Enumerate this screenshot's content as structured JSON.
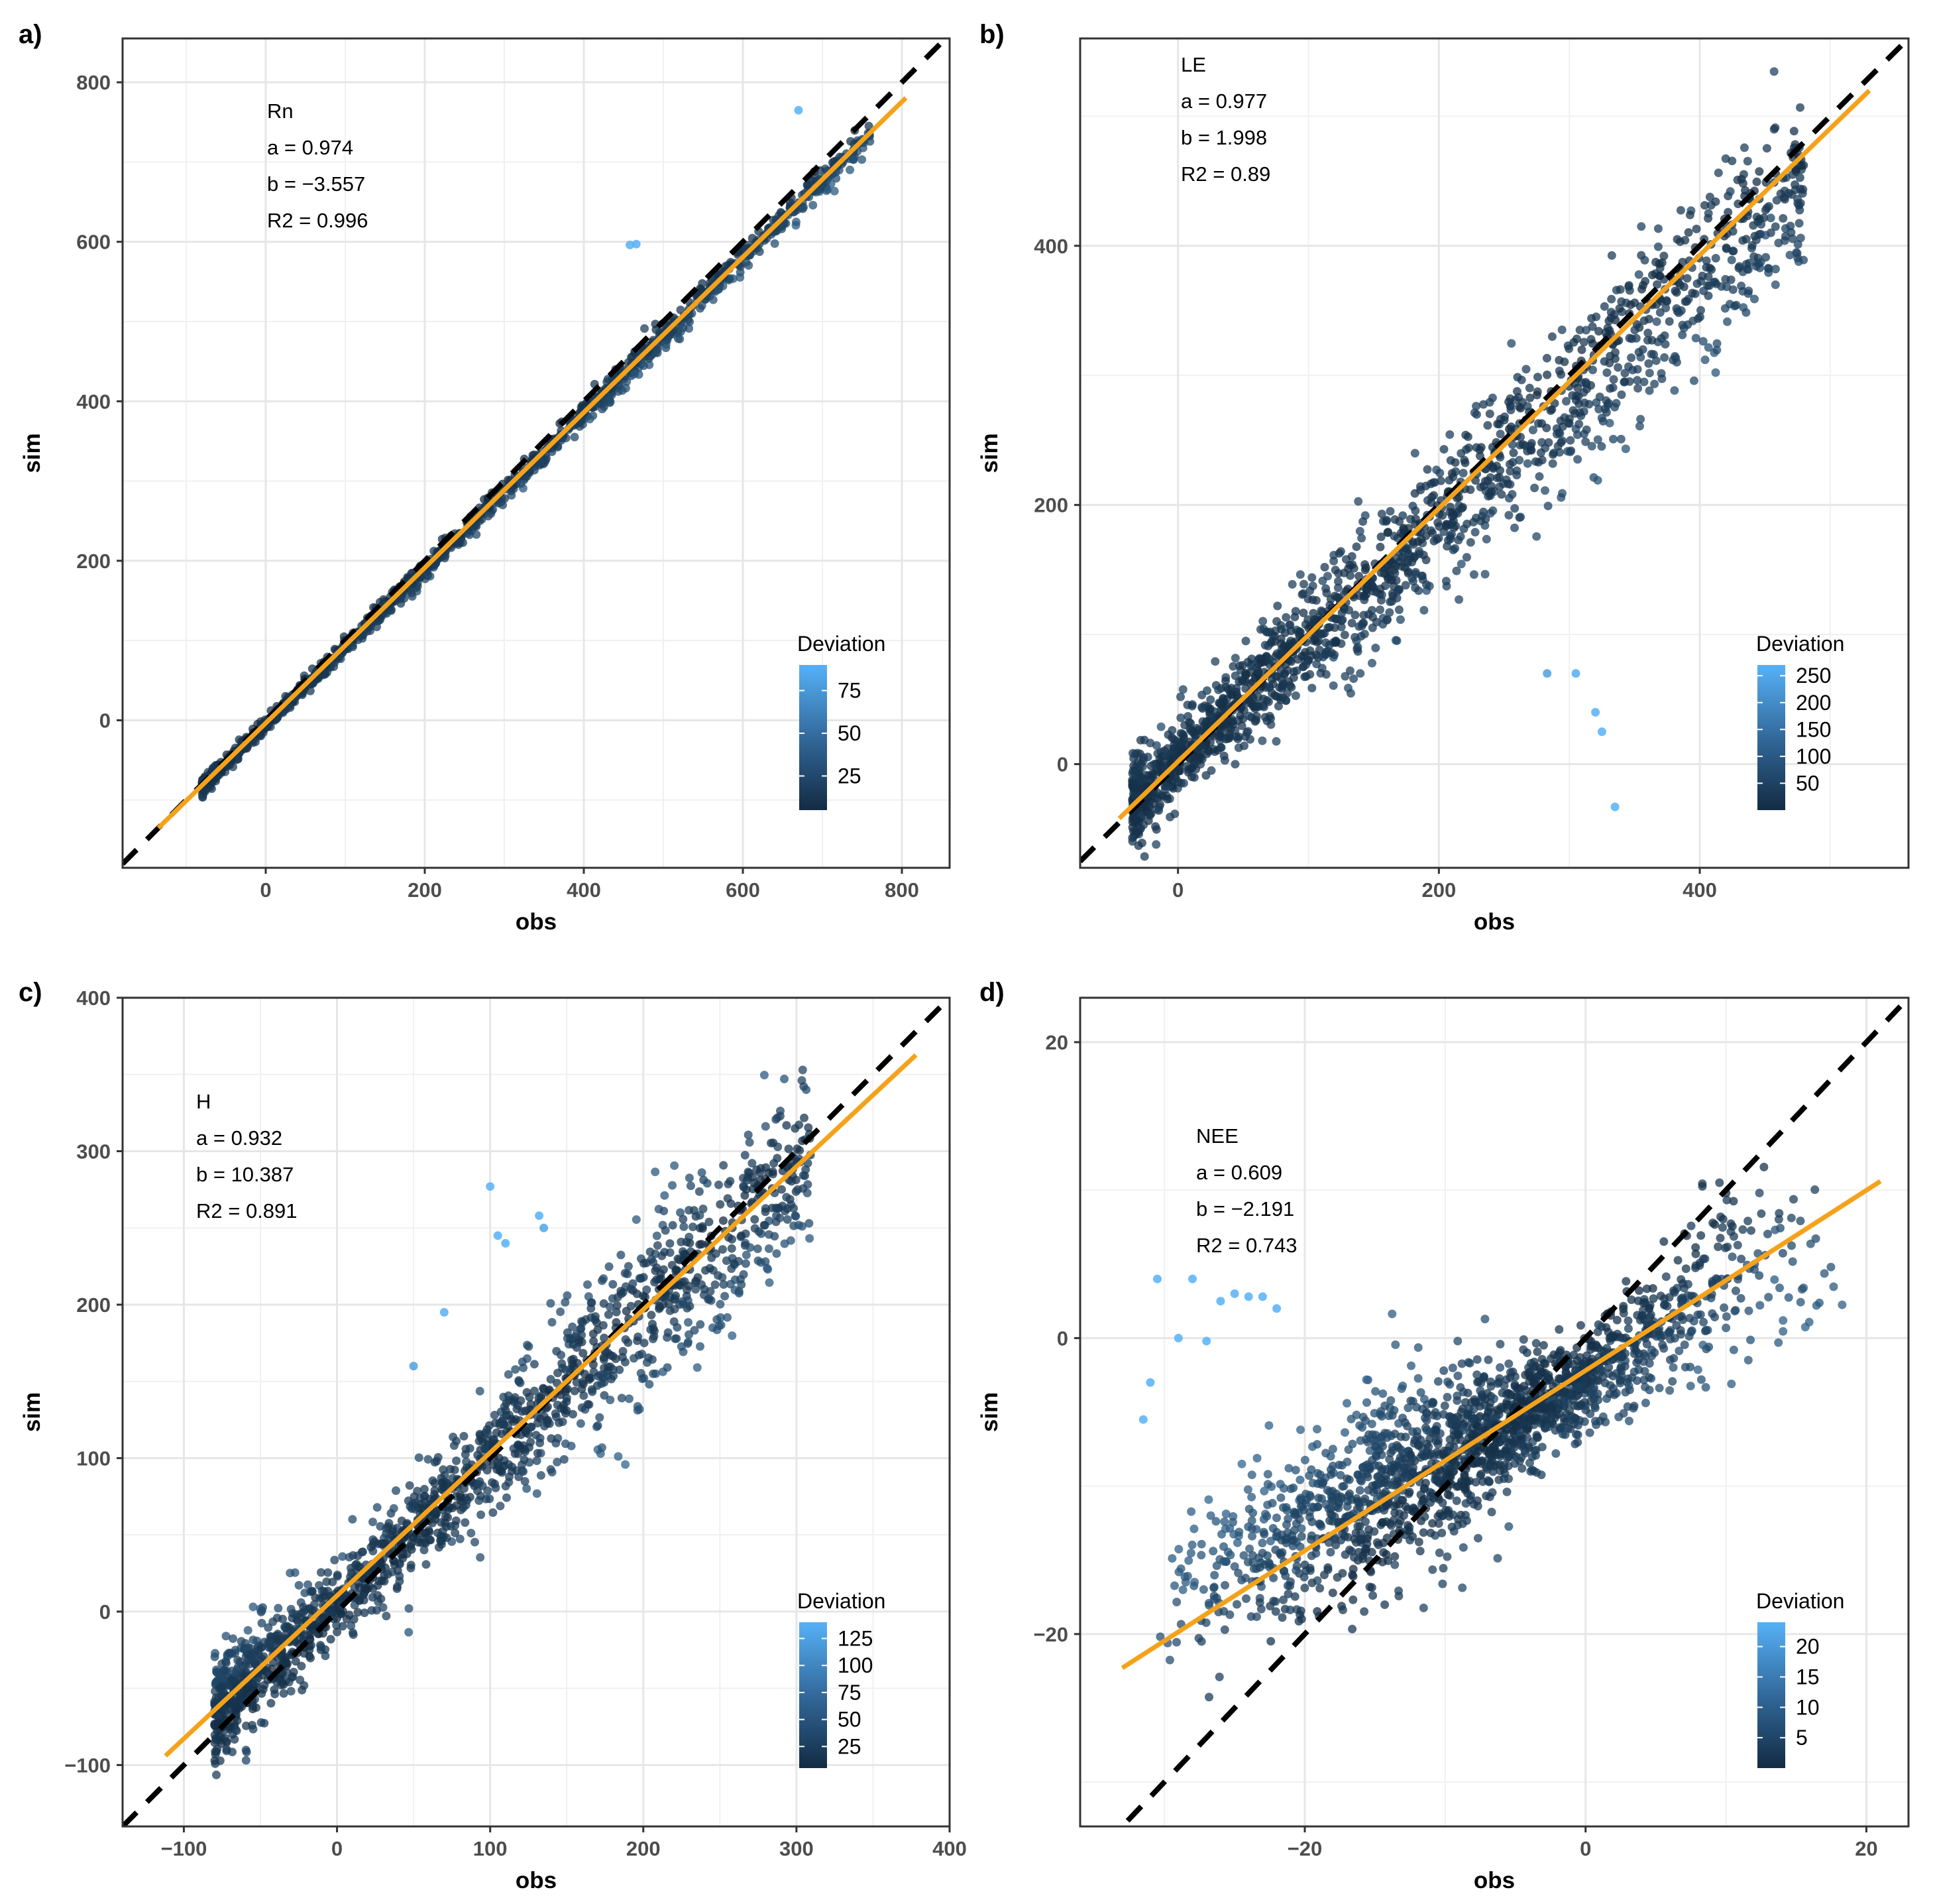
{
  "chart_data": [
    {
      "type": "scatter",
      "tag": "a)",
      "xlabel": "obs",
      "ylabel": "sim",
      "xlim": [
        -180,
        860
      ],
      "ylim": [
        -185,
        855
      ],
      "xticks": [
        0,
        200,
        400,
        600,
        800
      ],
      "yticks": [
        0,
        200,
        400,
        600,
        800
      ],
      "stats": [
        "Rn",
        "a = 0.974",
        "b = −3.557",
        "R2 = 0.996"
      ],
      "fit": {
        "slope": 0.974,
        "intercept": -3.557,
        "x_range": [
          -135,
          805
        ]
      },
      "identity_line": true,
      "legend": {
        "title": "Deviation",
        "position": "bottom-right",
        "min": 5,
        "max": 90,
        "ticks": [
          25,
          50,
          75
        ]
      },
      "points": {
        "x_range": [
          -80,
          760
        ],
        "slope": 0.974,
        "intercept": -5,
        "spread": 9,
        "count": 1400
      },
      "outliers": [
        [
          670,
          765
        ],
        [
          458,
          596
        ],
        [
          466,
          597
        ]
      ]
    },
    {
      "type": "scatter",
      "tag": "b)",
      "xlabel": "obs",
      "ylabel": "sim",
      "xlim": [
        -75,
        560
      ],
      "ylim": [
        -80,
        560
      ],
      "xticks": [
        0,
        200,
        400
      ],
      "yticks": [
        0,
        200,
        400
      ],
      "stats": [
        "LE",
        "a = 0.977",
        "b = 1.998",
        "R2 = 0.89"
      ],
      "fit": {
        "slope": 0.977,
        "intercept": 1.998,
        "x_range": [
          -45,
          530
        ]
      },
      "identity_line": true,
      "legend": {
        "title": "Deviation",
        "position": "bottom-right",
        "min": 0,
        "max": 270,
        "ticks": [
          50,
          100,
          150,
          200,
          250
        ]
      },
      "points": {
        "x_range": [
          -35,
          480
        ],
        "slope": 0.93,
        "intercept": 3,
        "spread": 34,
        "count": 1700
      },
      "outliers": [
        [
          320,
          40
        ],
        [
          325,
          25
        ],
        [
          335,
          -33
        ],
        [
          283,
          70
        ],
        [
          305,
          70
        ]
      ]
    },
    {
      "type": "scatter",
      "tag": "c)",
      "xlabel": "obs",
      "ylabel": "sim",
      "xlim": [
        -140,
        400
      ],
      "ylim": [
        -140,
        400
      ],
      "xticks": [
        -100,
        0,
        100,
        200,
        300,
        400
      ],
      "yticks": [
        -100,
        0,
        100,
        200,
        300,
        400
      ],
      "stats": [
        "H",
        "a = 0.932",
        "b = 10.387",
        "R2 = 0.891"
      ],
      "fit": {
        "slope": 0.932,
        "intercept": 10.387,
        "x_range": [
          -112,
          378
        ]
      },
      "identity_line": true,
      "legend": {
        "title": "Deviation",
        "position": "bottom-right",
        "min": 5,
        "max": 140,
        "ticks": [
          25,
          50,
          75,
          100,
          125
        ]
      },
      "points": {
        "x_range": [
          -80,
          310
        ],
        "slope": 0.93,
        "intercept": 8,
        "spread": 27,
        "count": 1600
      },
      "outliers": [
        [
          100,
          277
        ],
        [
          105,
          245
        ],
        [
          110,
          240
        ],
        [
          132,
          258
        ],
        [
          135,
          250
        ],
        [
          70,
          195
        ],
        [
          50,
          160
        ]
      ]
    },
    {
      "type": "scatter",
      "tag": "d)",
      "xlabel": "obs",
      "ylabel": "sim",
      "xlim": [
        -36,
        23
      ],
      "ylim": [
        -33,
        23
      ],
      "xticks": [
        -20,
        0,
        20
      ],
      "yticks": [
        -20,
        0,
        20
      ],
      "stats": [
        "NEE",
        "a = 0.609",
        "b = −2.191",
        "R2 = 0.743"
      ],
      "fit": {
        "slope": 0.609,
        "intercept": -2.191,
        "x_range": [
          -33,
          21
        ]
      },
      "identity_line": true,
      "legend": {
        "title": "Deviation",
        "position": "bottom-right",
        "min": 0,
        "max": 24,
        "ticks": [
          5,
          10,
          15,
          20
        ]
      },
      "points": {
        "x_range": [
          -31,
          19
        ],
        "slope": 0.5,
        "intercept": -3,
        "spread": 3.2,
        "count": 1800
      },
      "outliers": [
        [
          -30.5,
          4
        ],
        [
          -29,
          0
        ],
        [
          -28,
          4
        ],
        [
          -26,
          2.5
        ],
        [
          -25,
          3
        ],
        [
          -24,
          2.8
        ],
        [
          -23,
          2.8
        ],
        [
          -22,
          2
        ],
        [
          -27,
          -0.2
        ],
        [
          -31,
          -3
        ],
        [
          -31.5,
          -5.5
        ]
      ]
    }
  ]
}
